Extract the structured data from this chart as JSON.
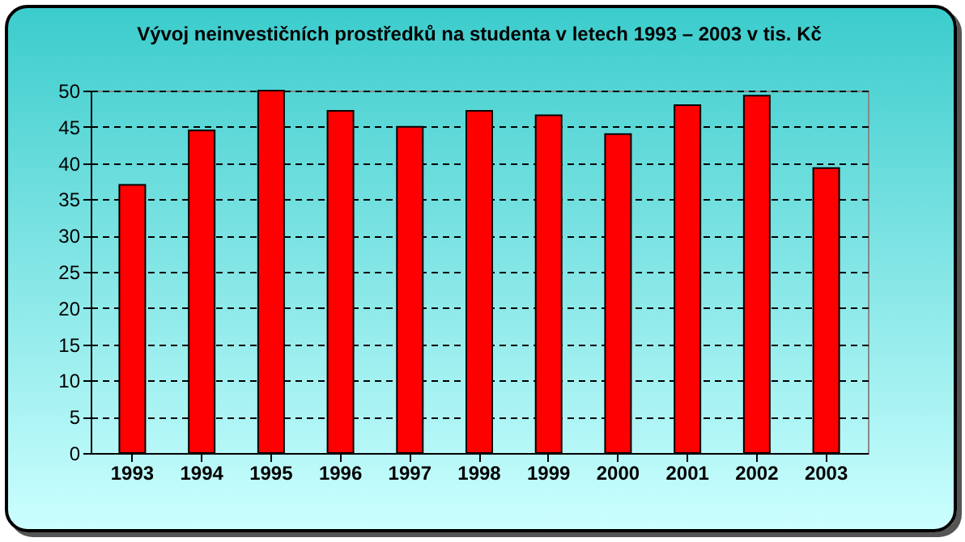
{
  "chart_data": {
    "type": "bar",
    "title": "Vývoj neinvestičních prostředků na studenta v letech 1993 – 2003 v tis. Kč",
    "categories": [
      "1993",
      "1994",
      "1995",
      "1996",
      "1997",
      "1998",
      "1999",
      "2000",
      "2001",
      "2002",
      "2003"
    ],
    "values": [
      37,
      44.5,
      50,
      47.2,
      45,
      47.2,
      46.6,
      44,
      48,
      49.3,
      39.3
    ],
    "color": "#ff0000",
    "ylim": [
      0,
      50
    ],
    "yticks": [
      0,
      5,
      10,
      15,
      20,
      25,
      30,
      35,
      40,
      45,
      50
    ],
    "grid": "y"
  }
}
